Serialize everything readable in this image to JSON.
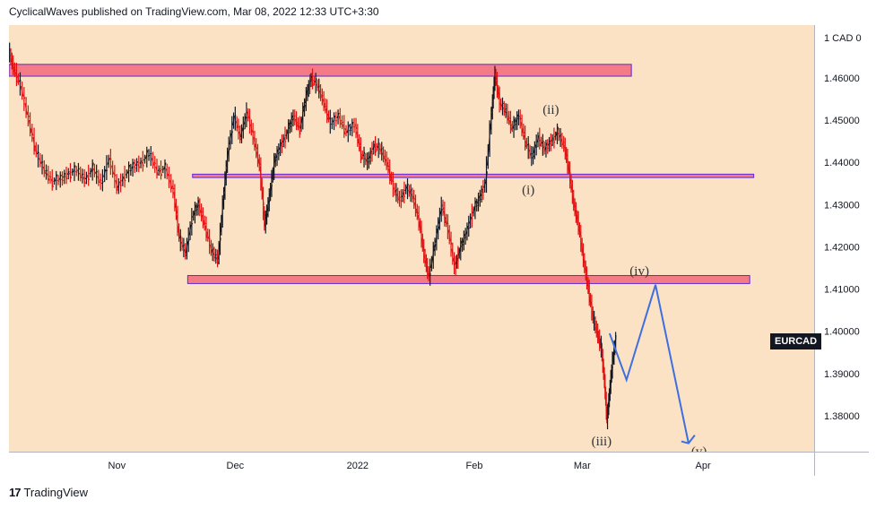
{
  "header": {
    "text": "CyclicalWaves published on TradingView.com, Mar 08, 2022 12:33 UTC+3:30"
  },
  "footer": {
    "brand": "TradingView",
    "logo_text": "17"
  },
  "symbol": "EURCAD",
  "currency_label": "1 CAD 0",
  "colors": {
    "background": "#fbe2c5",
    "price_up": "#131722",
    "price_down": "#e01010",
    "zone_fill": "#f37b85",
    "zone_border": "#5b2bd6",
    "projection": "#3d6fe0"
  },
  "chart_data": {
    "type": "line",
    "title": "",
    "xlabel": "",
    "ylabel": "",
    "ylim": [
      1.3715,
      1.4725
    ],
    "yticks": [
      "1.38000",
      "1.39000",
      "1.40000",
      "1.41000",
      "1.42000",
      "1.43000",
      "1.44000",
      "1.45000",
      "1.46000"
    ],
    "xticks": [
      {
        "label": "Nov",
        "t": 0.134
      },
      {
        "label": "Dec",
        "t": 0.281
      },
      {
        "label": "2022",
        "t": 0.433
      },
      {
        "label": "Feb",
        "t": 0.578
      },
      {
        "label": "Mar",
        "t": 0.712
      },
      {
        "label": "Apr",
        "t": 0.862
      }
    ],
    "series": [
      {
        "points": [
          [
            0.0,
            1.4665
          ],
          [
            0.006,
            1.4625
          ],
          [
            0.015,
            1.458
          ],
          [
            0.025,
            1.45
          ],
          [
            0.035,
            1.442
          ],
          [
            0.045,
            1.438
          ],
          [
            0.055,
            1.4355
          ],
          [
            0.065,
            1.436
          ],
          [
            0.075,
            1.4375
          ],
          [
            0.085,
            1.438
          ],
          [
            0.095,
            1.436
          ],
          [
            0.105,
            1.4385
          ],
          [
            0.115,
            1.435
          ],
          [
            0.125,
            1.441
          ],
          [
            0.135,
            1.434
          ],
          [
            0.145,
            1.437
          ],
          [
            0.155,
            1.439
          ],
          [
            0.165,
            1.44
          ],
          [
            0.175,
            1.442
          ],
          [
            0.185,
            1.438
          ],
          [
            0.195,
            1.4385
          ],
          [
            0.205,
            1.433
          ],
          [
            0.212,
            1.422
          ],
          [
            0.22,
            1.4185
          ],
          [
            0.228,
            1.427
          ],
          [
            0.236,
            1.43
          ],
          [
            0.244,
            1.425
          ],
          [
            0.252,
            1.419
          ],
          [
            0.26,
            1.417
          ],
          [
            0.266,
            1.43
          ],
          [
            0.272,
            1.442
          ],
          [
            0.28,
            1.451
          ],
          [
            0.288,
            1.446
          ],
          [
            0.296,
            1.452
          ],
          [
            0.304,
            1.446
          ],
          [
            0.312,
            1.439
          ],
          [
            0.318,
            1.425
          ],
          [
            0.324,
            1.432
          ],
          [
            0.33,
            1.44
          ],
          [
            0.338,
            1.444
          ],
          [
            0.346,
            1.447
          ],
          [
            0.354,
            1.451
          ],
          [
            0.362,
            1.448
          ],
          [
            0.37,
            1.456
          ],
          [
            0.376,
            1.46
          ],
          [
            0.384,
            1.458
          ],
          [
            0.392,
            1.454
          ],
          [
            0.4,
            1.449
          ],
          [
            0.41,
            1.451
          ],
          [
            0.42,
            1.447
          ],
          [
            0.43,
            1.449
          ],
          [
            0.438,
            1.442
          ],
          [
            0.446,
            1.44
          ],
          [
            0.454,
            1.444
          ],
          [
            0.462,
            1.443
          ],
          [
            0.47,
            1.44
          ],
          [
            0.478,
            1.434
          ],
          [
            0.486,
            1.431
          ],
          [
            0.494,
            1.434
          ],
          [
            0.502,
            1.432
          ],
          [
            0.51,
            1.426
          ],
          [
            0.516,
            1.418
          ],
          [
            0.522,
            1.413
          ],
          [
            0.53,
            1.421
          ],
          [
            0.538,
            1.43
          ],
          [
            0.546,
            1.424
          ],
          [
            0.554,
            1.415
          ],
          [
            0.56,
            1.419
          ],
          [
            0.568,
            1.423
          ],
          [
            0.576,
            1.428
          ],
          [
            0.584,
            1.431
          ],
          [
            0.592,
            1.435
          ],
          [
            0.6,
            1.452
          ],
          [
            0.604,
            1.461
          ],
          [
            0.61,
            1.454
          ],
          [
            0.618,
            1.452
          ],
          [
            0.626,
            1.448
          ],
          [
            0.634,
            1.451
          ],
          [
            0.642,
            1.445
          ],
          [
            0.65,
            1.441
          ],
          [
            0.658,
            1.446
          ],
          [
            0.666,
            1.443
          ],
          [
            0.674,
            1.445
          ],
          [
            0.682,
            1.447
          ],
          [
            0.69,
            1.444
          ],
          [
            0.696,
            1.438
          ],
          [
            0.702,
            1.43
          ],
          [
            0.708,
            1.425
          ],
          [
            0.714,
            1.417
          ],
          [
            0.72,
            1.41
          ],
          [
            0.726,
            1.403
          ],
          [
            0.732,
            1.399
          ],
          [
            0.736,
            1.396
          ],
          [
            0.74,
            1.388
          ],
          [
            0.743,
            1.379
          ],
          [
            0.746,
            1.385
          ],
          [
            0.75,
            1.393
          ],
          [
            0.754,
            1.398
          ]
        ]
      }
    ],
    "zones": [
      {
        "y_low": 1.4604,
        "y_high": 1.4632,
        "t_start": 0.0,
        "t_end": 0.773
      },
      {
        "y_low": 1.4364,
        "y_high": 1.4372,
        "t_start": 0.228,
        "t_end": 0.925
      },
      {
        "y_low": 1.4113,
        "y_high": 1.4132,
        "t_start": 0.222,
        "t_end": 0.92
      }
    ],
    "projection": [
      [
        0.746,
        1.3995
      ],
      [
        0.767,
        1.3885
      ],
      [
        0.803,
        1.411
      ],
      [
        0.844,
        1.3735
      ]
    ],
    "wave_labels": [
      {
        "text": "(ii)",
        "t": 0.673,
        "y": 1.4515
      },
      {
        "text": "(i)",
        "t": 0.645,
        "y": 1.4325
      },
      {
        "text": "(iv)",
        "t": 0.783,
        "y": 1.4133
      },
      {
        "text": "(iii)",
        "t": 0.736,
        "y": 1.373
      },
      {
        "text": "(v)",
        "t": 0.857,
        "y": 1.3705
      }
    ]
  }
}
